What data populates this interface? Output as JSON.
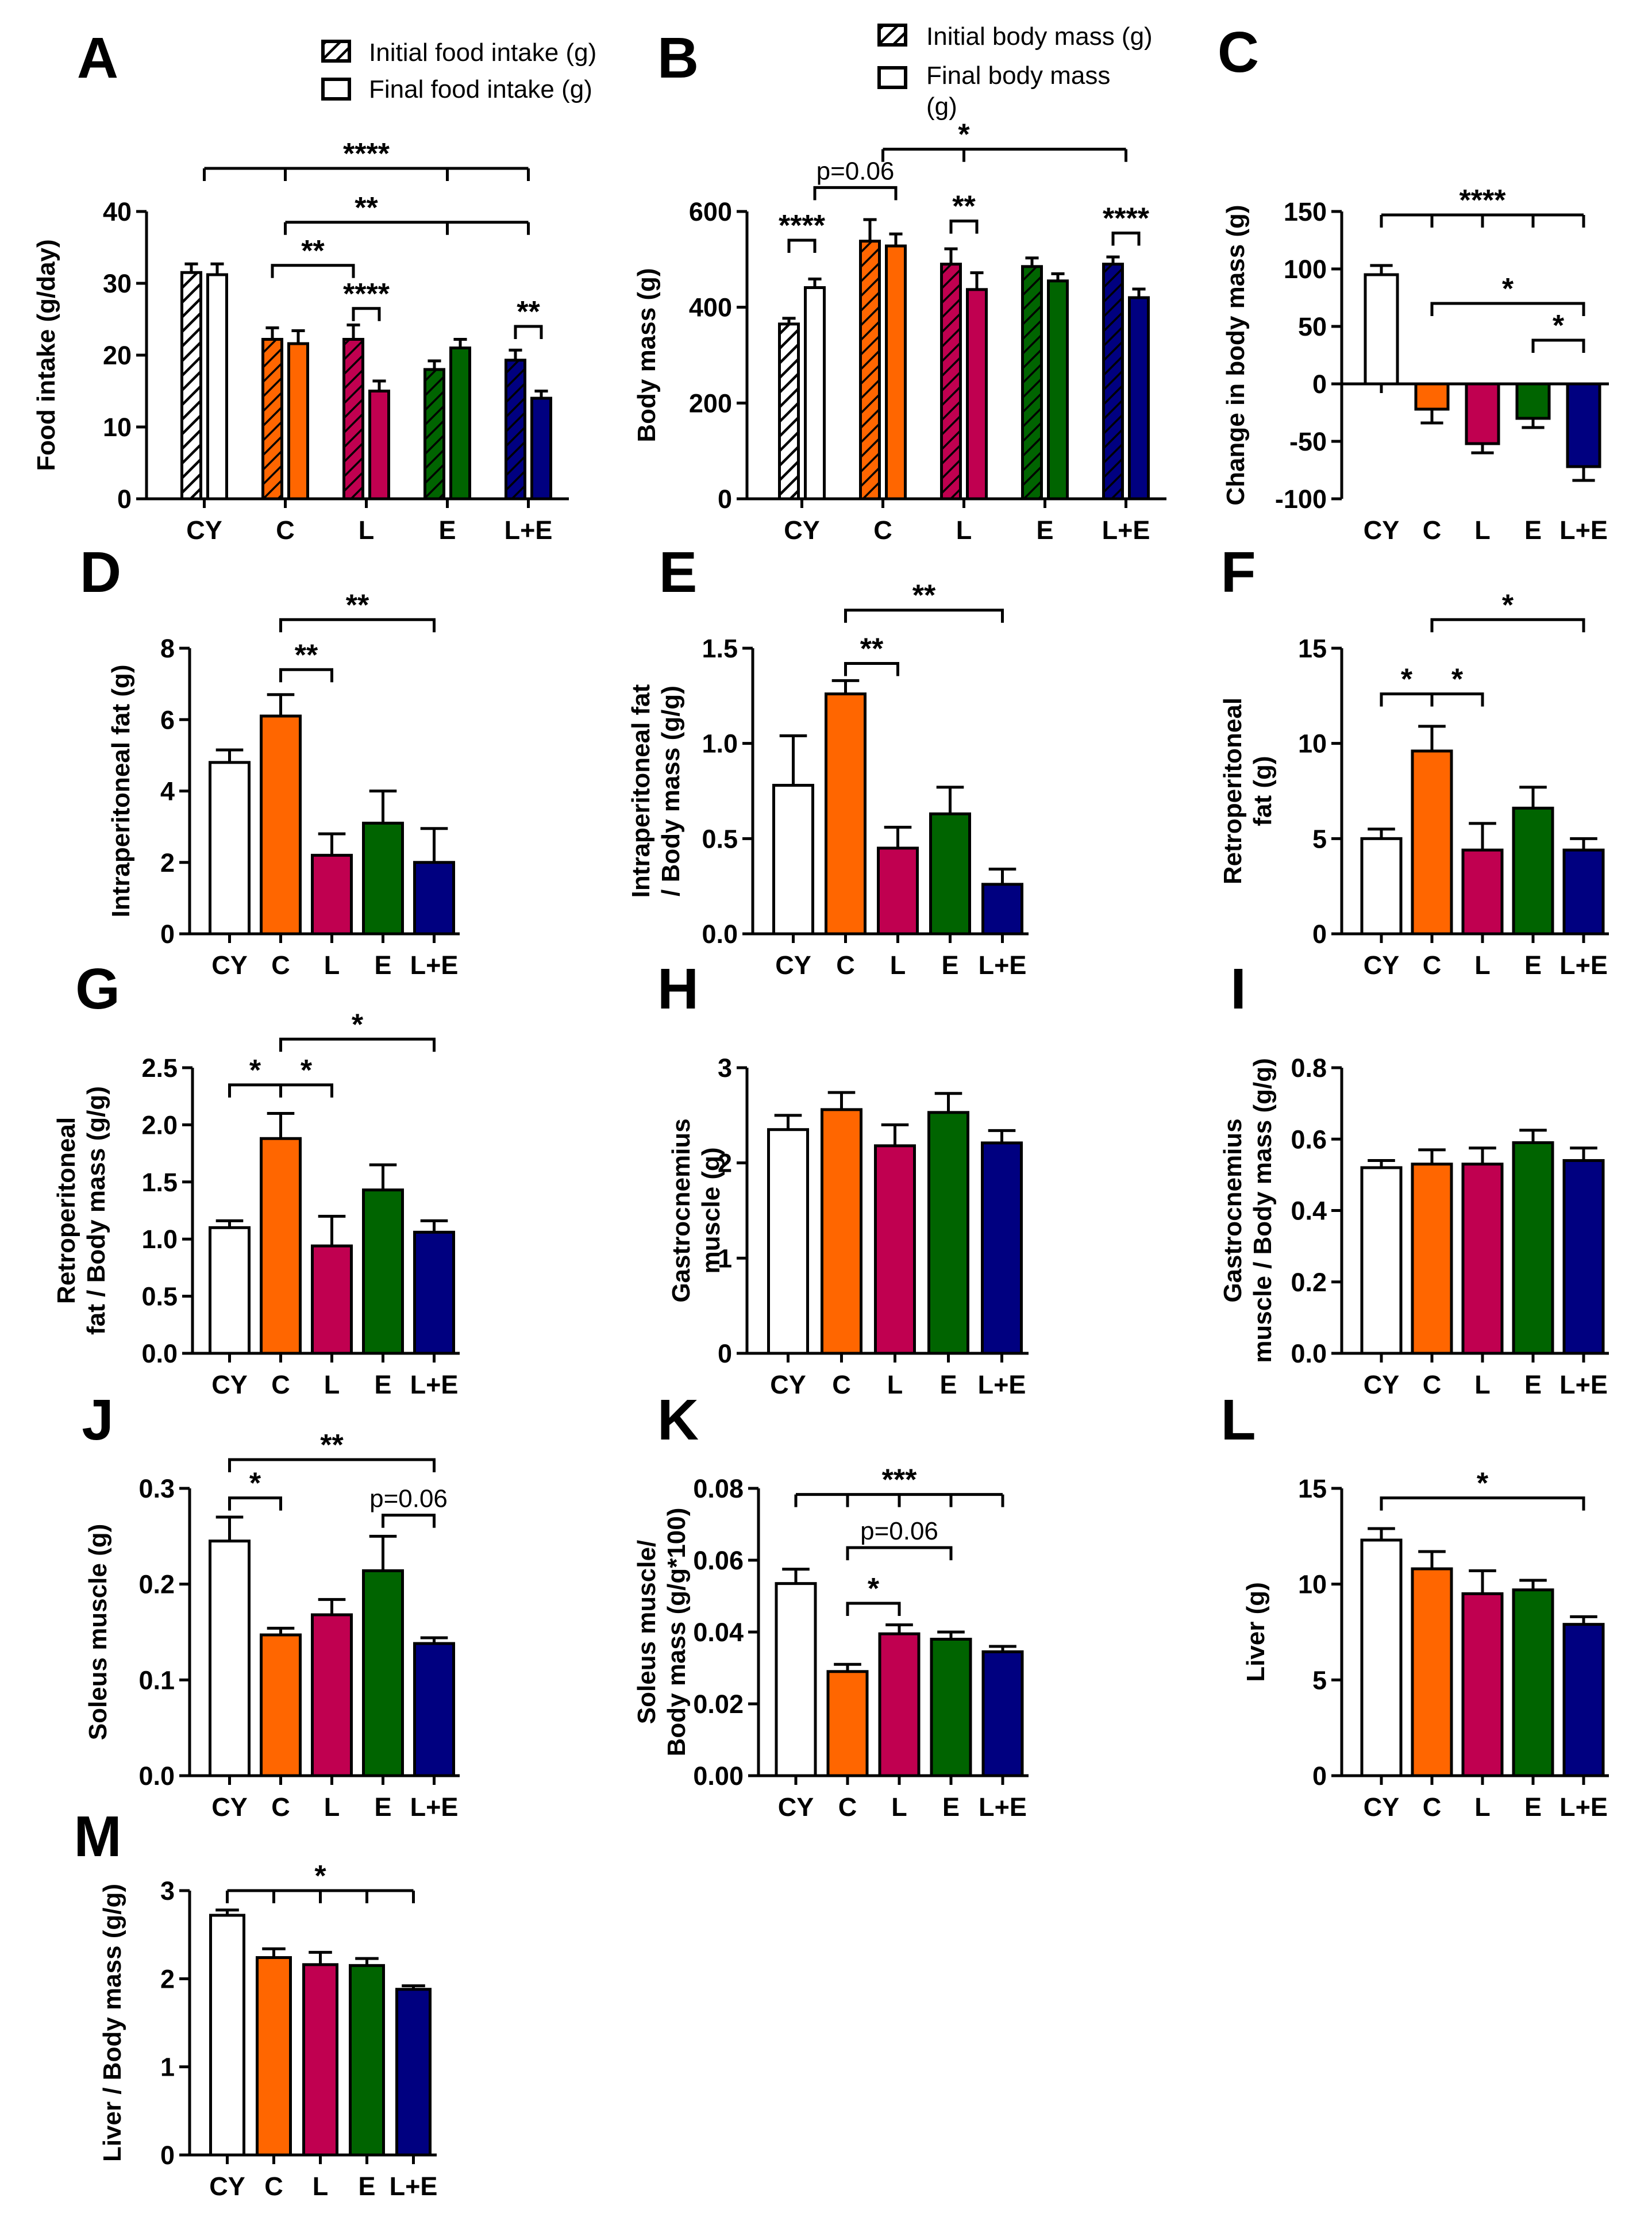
{
  "colors": {
    "CY": "#ffffff",
    "C": "#ff6600",
    "L": "#c00050",
    "E": "#006400",
    "L+E": "#000080",
    "ink": "#000000"
  },
  "legends": {
    "food": [
      "Initial food intake (g)",
      "Final food intake (g)"
    ],
    "body": [
      "Initial body mass (g)",
      "Final body mass",
      "(g)"
    ]
  },
  "chart_data": [
    {
      "panel": "A",
      "type": "bar",
      "paired": true,
      "categories": [
        "CY",
        "C",
        "L",
        "E",
        "L+E"
      ],
      "series": [
        {
          "name": "Initial food intake (g)",
          "values": [
            31.5,
            22.2,
            22.2,
            18.0,
            19.3
          ],
          "errors": [
            1.2,
            1.6,
            2.0,
            1.2,
            1.4
          ]
        },
        {
          "name": "Final food intake (g)",
          "values": [
            31.2,
            21.6,
            15.0,
            21.0,
            14.0
          ],
          "errors": [
            1.5,
            1.8,
            1.4,
            1.2,
            1.0
          ]
        }
      ],
      "ylabel": "Food intake (g/day)",
      "ylim": [
        0,
        40
      ],
      "yticks": [
        "0",
        "10",
        "20",
        "30",
        "40"
      ],
      "sig": [
        {
          "kind": "multi",
          "groups": [
            0,
            1,
            3,
            4
          ],
          "level": 46,
          "label": "****",
          "lpos": 2
        },
        {
          "kind": "multi",
          "groups": [
            1,
            3,
            4
          ],
          "level": 38.5,
          "label": "**",
          "lpos": 2
        },
        {
          "kind": "bracket",
          "from": [
            1,
            0
          ],
          "to": [
            2,
            0
          ],
          "level": 32.5,
          "label": "**"
        },
        {
          "kind": "bracket",
          "from": [
            2,
            0
          ],
          "to": [
            2,
            1
          ],
          "level": 26.5,
          "label": "****"
        },
        {
          "kind": "bracket",
          "from": [
            4,
            0
          ],
          "to": [
            4,
            1
          ],
          "level": 24,
          "label": "**"
        }
      ]
    },
    {
      "panel": "B",
      "type": "bar",
      "paired": true,
      "categories": [
        "CY",
        "C",
        "L",
        "E",
        "L+E"
      ],
      "series": [
        {
          "name": "Initial body mass (g)",
          "values": [
            365,
            538,
            490,
            485,
            490
          ],
          "errors": [
            12,
            45,
            32,
            18,
            15
          ]
        },
        {
          "name": "Final body mass (g)",
          "values": [
            441,
            528,
            437,
            455,
            420
          ],
          "errors": [
            18,
            25,
            35,
            15,
            18
          ]
        }
      ],
      "ylabel": "Body mass (g)",
      "ylim": [
        0,
        600
      ],
      "yticks": [
        "0",
        "200",
        "400",
        "600"
      ],
      "sig": [
        {
          "kind": "bracket",
          "from": [
            0,
            0
          ],
          "to": [
            0,
            1
          ],
          "level": 540,
          "label": "****"
        },
        {
          "kind": "bracket",
          "from": [
            0,
            1
          ],
          "to": [
            1,
            1
          ],
          "level": 650,
          "label": "p=0.06",
          "pv": true
        },
        {
          "kind": "multi",
          "groups": [
            1,
            2,
            4
          ],
          "level": 730,
          "label": "*",
          "lpos": 2
        },
        {
          "kind": "bracket",
          "from": [
            2,
            0
          ],
          "to": [
            2,
            1
          ],
          "level": 580,
          "label": "**"
        },
        {
          "kind": "bracket",
          "from": [
            4,
            0
          ],
          "to": [
            4,
            1
          ],
          "level": 555,
          "label": "****"
        }
      ]
    },
    {
      "panel": "C",
      "type": "bar",
      "categories": [
        "CY",
        "C",
        "L",
        "E",
        "L+E"
      ],
      "values": [
        95,
        -22,
        -52,
        -30,
        -72
      ],
      "errors": [
        8,
        12,
        8,
        8,
        12
      ],
      "ylabel": "Change in body mass (g)",
      "ylim": [
        -100,
        150
      ],
      "yticks": [
        "-100",
        "-50",
        "0",
        "50",
        "100",
        "150"
      ],
      "sig": [
        {
          "kind": "multi",
          "groups": [
            0,
            1,
            2,
            3,
            4
          ],
          "level": 147,
          "label": "****",
          "lpos": 2
        },
        {
          "kind": "bracket",
          "from": 1,
          "to": 4,
          "level": 70,
          "label": "*"
        },
        {
          "kind": "bracket",
          "from": 3,
          "to": 4,
          "level": 38,
          "label": "*"
        }
      ]
    },
    {
      "panel": "D",
      "type": "bar",
      "categories": [
        "CY",
        "C",
        "L",
        "E",
        "L+E"
      ],
      "values": [
        4.8,
        6.1,
        2.2,
        3.1,
        2.0
      ],
      "errors": [
        0.35,
        0.6,
        0.6,
        0.9,
        0.95
      ],
      "ylabel": "Intraperitoneal fat (g)",
      "ylim": [
        0,
        8
      ],
      "yticks": [
        "0",
        "2",
        "4",
        "6",
        "8"
      ],
      "sig": [
        {
          "kind": "bracket",
          "from": 1,
          "to": 4,
          "level": 8.8,
          "label": "**"
        },
        {
          "kind": "bracket",
          "from": 1,
          "to": 2,
          "level": 7.4,
          "label": "**"
        }
      ]
    },
    {
      "panel": "E",
      "type": "bar",
      "categories": [
        "CY",
        "C",
        "L",
        "E",
        "L+E"
      ],
      "values": [
        0.78,
        1.26,
        0.45,
        0.63,
        0.26
      ],
      "errors": [
        0.26,
        0.07,
        0.11,
        0.14,
        0.08
      ],
      "ylabel": [
        "Intraperitoneal fat",
        "/ Body mass (g/g)"
      ],
      "ylim": [
        0,
        1.5
      ],
      "yticks": [
        "0.0",
        "0.5",
        "1.0",
        "1.5"
      ],
      "sig": [
        {
          "kind": "bracket",
          "from": 1,
          "to": 4,
          "level": 1.7,
          "label": "**"
        },
        {
          "kind": "bracket",
          "from": 1,
          "to": 2,
          "level": 1.42,
          "label": "**"
        }
      ]
    },
    {
      "panel": "F",
      "type": "bar",
      "categories": [
        "CY",
        "C",
        "L",
        "E",
        "L+E"
      ],
      "values": [
        5.0,
        9.6,
        4.4,
        6.6,
        4.4
      ],
      "errors": [
        0.5,
        1.3,
        1.4,
        1.1,
        0.6
      ],
      "ylabel": [
        "Retroperitoneal",
        "fat  (g)"
      ],
      "ylim": [
        0,
        15
      ],
      "yticks": [
        "0",
        "5",
        "10",
        "15"
      ],
      "sig": [
        {
          "kind": "bracket",
          "from": 1,
          "to": 4,
          "level": 16.5,
          "label": "*"
        },
        {
          "kind": "split",
          "from": 0,
          "mid": 1,
          "to": 2,
          "level": 12.6,
          "labels": [
            "*",
            "*"
          ]
        }
      ]
    },
    {
      "panel": "G",
      "type": "bar",
      "categories": [
        "CY",
        "C",
        "L",
        "E",
        "L+E"
      ],
      "values": [
        1.1,
        1.88,
        0.94,
        1.43,
        1.06
      ],
      "errors": [
        0.06,
        0.22,
        0.26,
        0.22,
        0.1
      ],
      "ylabel": [
        "Retroperitoneal",
        "fat / Body mass (g/g)"
      ],
      "ylim": [
        0,
        2.5
      ],
      "yticks": [
        "0.0",
        "0.5",
        "1.0",
        "1.5",
        "2.0",
        "2.5"
      ],
      "sig": [
        {
          "kind": "bracket",
          "from": 1,
          "to": 4,
          "level": 2.75,
          "label": "*"
        },
        {
          "kind": "split",
          "from": 0,
          "mid": 1,
          "to": 2,
          "level": 2.35,
          "labels": [
            "*",
            "*"
          ]
        }
      ]
    },
    {
      "panel": "H",
      "type": "bar",
      "categories": [
        "CY",
        "C",
        "L",
        "E",
        "L+E"
      ],
      "values": [
        2.35,
        2.56,
        2.18,
        2.53,
        2.21
      ],
      "errors": [
        0.15,
        0.18,
        0.22,
        0.2,
        0.13
      ],
      "ylabel": [
        "Gastrocnemius",
        "muscle (g)"
      ],
      "ylim": [
        0,
        3
      ],
      "yticks": [
        "0",
        "1",
        "2",
        "3"
      ],
      "sig": []
    },
    {
      "panel": "I",
      "type": "bar",
      "categories": [
        "CY",
        "C",
        "L",
        "E",
        "L+E"
      ],
      "values": [
        0.52,
        0.53,
        0.53,
        0.59,
        0.54
      ],
      "errors": [
        0.02,
        0.04,
        0.045,
        0.035,
        0.035
      ],
      "ylabel": [
        "Gastrocnemius",
        "muscle / Body mass (g/g)"
      ],
      "ylim": [
        0,
        0.8
      ],
      "yticks": [
        "0.0",
        "0.2",
        "0.4",
        "0.6",
        "0.8"
      ],
      "sig": []
    },
    {
      "panel": "J",
      "type": "bar",
      "categories": [
        "CY",
        "C",
        "L",
        "E",
        "L+E"
      ],
      "values": [
        0.245,
        0.147,
        0.168,
        0.214,
        0.138
      ],
      "errors": [
        0.025,
        0.007,
        0.016,
        0.036,
        0.006
      ],
      "ylabel": "Soleus muscle (g)",
      "ylim": [
        0,
        0.3
      ],
      "yticks": [
        "0.0",
        "0.1",
        "0.2",
        "0.3"
      ],
      "sig": [
        {
          "kind": "bracket",
          "from": 0,
          "to": 4,
          "level": 0.33,
          "label": "**"
        },
        {
          "kind": "bracket",
          "from": 0,
          "to": 1,
          "level": 0.29,
          "label": "*"
        },
        {
          "kind": "bracket",
          "from": 3,
          "to": 4,
          "level": 0.272,
          "label": "p=0.06",
          "pv": true
        }
      ]
    },
    {
      "panel": "K",
      "type": "bar",
      "categories": [
        "CY",
        "C",
        "L",
        "E",
        "L+E"
      ],
      "values": [
        0.0535,
        0.029,
        0.0395,
        0.038,
        0.0345
      ],
      "errors": [
        0.004,
        0.002,
        0.0025,
        0.002,
        0.0015
      ],
      "ylabel": [
        "Soleus muscle/",
        "Body mass (g/g*100)"
      ],
      "ylim": [
        0,
        0.08
      ],
      "yticks": [
        "0.00",
        "0.02",
        "0.04",
        "0.06",
        "0.08"
      ],
      "sig": [
        {
          "kind": "multi",
          "groups": [
            0,
            1,
            2,
            3,
            4
          ],
          "level": 0.0783,
          "label": "***",
          "lpos": 2
        },
        {
          "kind": "bracket",
          "from": 1,
          "to": 3,
          "level": 0.0635,
          "label": "p=0.06",
          "pv": true
        },
        {
          "kind": "bracket",
          "from": 1,
          "to": 2,
          "level": 0.048,
          "label": "*"
        }
      ]
    },
    {
      "panel": "L",
      "type": "bar",
      "categories": [
        "CY",
        "C",
        "L",
        "E",
        "L+E"
      ],
      "values": [
        12.3,
        10.8,
        9.5,
        9.7,
        7.9
      ],
      "errors": [
        0.6,
        0.9,
        1.2,
        0.5,
        0.4
      ],
      "ylabel": "Liver (g)",
      "ylim": [
        0,
        15
      ],
      "yticks": [
        "0",
        "5",
        "10",
        "15"
      ],
      "sig": [
        {
          "kind": "bracket",
          "from": 0,
          "to": 4,
          "level": 14.5,
          "label": "*"
        }
      ]
    },
    {
      "panel": "M",
      "type": "bar",
      "categories": [
        "CY",
        "C",
        "L",
        "E",
        "L+E"
      ],
      "values": [
        2.72,
        2.24,
        2.16,
        2.15,
        1.88
      ],
      "errors": [
        0.06,
        0.1,
        0.14,
        0.08,
        0.04
      ],
      "ylabel": "Liver / Body mass (g/g)",
      "ylim": [
        0,
        3
      ],
      "yticks": [
        "0",
        "1",
        "2",
        "3"
      ],
      "sig": [
        {
          "kind": "multi",
          "groups": [
            0,
            1,
            2,
            3,
            4
          ],
          "level": 3.0,
          "label": "*",
          "lpos": 2
        }
      ]
    }
  ]
}
